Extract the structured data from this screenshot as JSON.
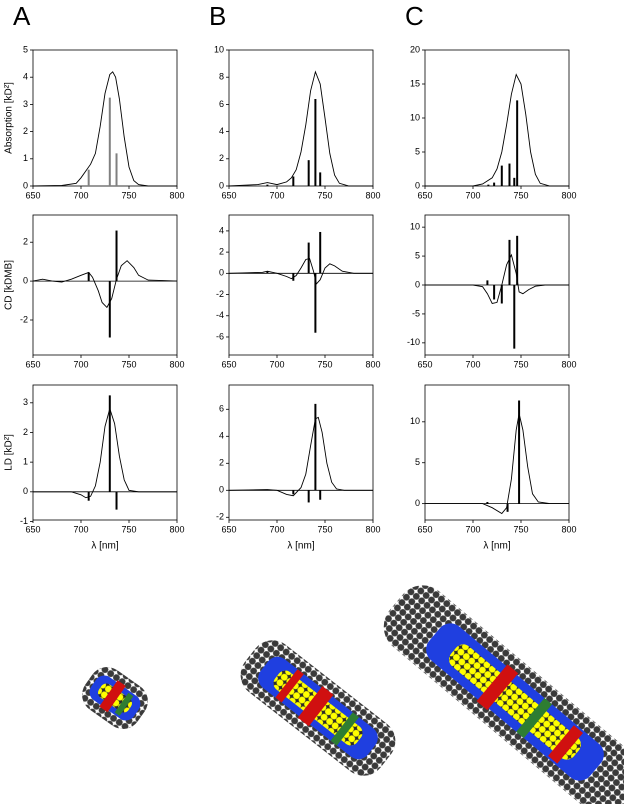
{
  "chart_data": [
    {
      "type": "line",
      "panel_label": "A",
      "ylabel": "Absorption [kD²]",
      "xlim": [
        650,
        800
      ],
      "xticks": [
        650,
        700,
        750,
        800
      ],
      "ylim": [
        0,
        5
      ],
      "yticks": [
        0,
        1,
        2,
        3,
        4,
        5
      ],
      "color": "#000000",
      "stick_color": "#808080",
      "x": [
        650,
        680,
        695,
        700,
        705,
        710,
        715,
        720,
        725,
        730,
        733,
        736,
        740,
        745,
        750,
        755,
        760,
        770,
        800
      ],
      "values": [
        0,
        0.02,
        0.1,
        0.3,
        0.55,
        0.8,
        1.2,
        2.2,
        3.4,
        4.1,
        4.2,
        4.0,
        3.2,
        1.8,
        0.7,
        0.2,
        0.05,
        0,
        0
      ],
      "sticks_x": [
        708,
        730,
        737
      ],
      "sticks": [
        0.6,
        3.25,
        1.2
      ]
    },
    {
      "type": "line",
      "panel_label": "B",
      "xlim": [
        650,
        800
      ],
      "xticks": [
        650,
        700,
        750,
        800
      ],
      "ylim": [
        0,
        10
      ],
      "yticks": [
        0,
        2,
        4,
        6,
        8,
        10
      ],
      "color": "#000000",
      "stick_color": "#000000",
      "x": [
        650,
        680,
        690,
        700,
        710,
        715,
        720,
        725,
        730,
        735,
        740,
        745,
        750,
        755,
        760,
        765,
        775,
        800
      ],
      "values": [
        0,
        0.1,
        0.25,
        0.1,
        0.3,
        0.6,
        1.2,
        2.5,
        4.5,
        7.0,
        8.4,
        7.5,
        5.0,
        2.4,
        0.8,
        0.2,
        0,
        0
      ],
      "sticks_x": [
        690,
        717,
        733,
        740,
        745
      ],
      "sticks": [
        0.1,
        0.7,
        1.9,
        6.4,
        1.0
      ]
    },
    {
      "type": "line",
      "panel_label": "C",
      "xlim": [
        650,
        800
      ],
      "xticks": [
        650,
        700,
        750,
        800
      ],
      "ylim": [
        0,
        20
      ],
      "yticks": [
        0,
        5,
        10,
        15,
        20
      ],
      "color": "#000000",
      "stick_color": "#000000",
      "x": [
        650,
        700,
        710,
        720,
        725,
        730,
        735,
        740,
        745,
        750,
        755,
        760,
        765,
        770,
        780,
        800
      ],
      "values": [
        0,
        0,
        0.3,
        1.2,
        2.5,
        5,
        9,
        13.5,
        16.4,
        15,
        10.5,
        5,
        1.7,
        0.4,
        0,
        0
      ],
      "sticks_x": [
        716,
        722,
        730,
        738,
        743,
        746
      ],
      "sticks": [
        0.2,
        0.5,
        3.0,
        3.3,
        1.2,
        12.6
      ]
    },
    {
      "type": "line",
      "ylabel": "CD [kDMB]",
      "xlim": [
        650,
        800
      ],
      "xticks": [
        650,
        700,
        750,
        800
      ],
      "ylim": [
        -3.8,
        3.4
      ],
      "yticks": [
        -2,
        0,
        2
      ],
      "color": "#000000",
      "stick_color": "#000000",
      "x": [
        650,
        660,
        670,
        680,
        690,
        700,
        708,
        712,
        718,
        722,
        727,
        732,
        737,
        742,
        748,
        755,
        760,
        770,
        800
      ],
      "values": [
        0,
        0.1,
        0,
        -0.05,
        0.1,
        0.3,
        0.45,
        0.2,
        -0.5,
        -1.1,
        -1.35,
        -0.9,
        0.1,
        0.8,
        1.05,
        0.7,
        0.3,
        0.05,
        0
      ],
      "sticks_x": [
        708,
        730,
        737
      ],
      "sticks": [
        0.45,
        -2.9,
        2.6
      ]
    },
    {
      "type": "line",
      "xlim": [
        650,
        800
      ],
      "xticks": [
        650,
        700,
        750,
        800
      ],
      "ylim": [
        -7.7,
        5.5
      ],
      "yticks": [
        -6,
        -4,
        -2,
        0,
        2,
        4
      ],
      "color": "#000000",
      "stick_color": "#000000",
      "x": [
        650,
        685,
        690,
        700,
        710,
        715,
        720,
        725,
        730,
        734,
        738,
        741,
        745,
        750,
        755,
        760,
        768,
        780,
        800
      ],
      "values": [
        0,
        0.1,
        0.2,
        0,
        -0.3,
        -0.5,
        -0.2,
        0.5,
        1.3,
        1.4,
        0.2,
        -1.0,
        -0.6,
        0.5,
        0.9,
        0.7,
        0.2,
        0,
        0
      ],
      "sticks_x": [
        690,
        717,
        733,
        740,
        745
      ],
      "sticks": [
        0.2,
        -0.7,
        2.9,
        -5.6,
        3.9
      ]
    },
    {
      "type": "line",
      "xlim": [
        650,
        800
      ],
      "xticks": [
        650,
        700,
        750,
        800
      ],
      "ylim": [
        -12.1,
        12.1
      ],
      "yticks": [
        -10,
        -5,
        0,
        5,
        10
      ],
      "color": "#000000",
      "stick_color": "#000000",
      "x": [
        650,
        700,
        710,
        715,
        720,
        725,
        730,
        735,
        740,
        745,
        748,
        752,
        758,
        765,
        775,
        800
      ],
      "values": [
        0,
        0,
        -0.3,
        -1.5,
        -3.2,
        -3,
        0,
        3.5,
        5.2,
        2,
        -1.2,
        -1.5,
        -0.8,
        -0.2,
        0,
        0
      ],
      "sticks_x": [
        715,
        722,
        730,
        738,
        743,
        746
      ],
      "sticks": [
        0.8,
        -2.5,
        -3.2,
        7.8,
        -11,
        8.5
      ]
    },
    {
      "type": "line",
      "ylabel": "LD [kD²]",
      "xlabel": "λ [nm]",
      "xlim": [
        650,
        800
      ],
      "xticks": [
        650,
        700,
        750,
        800
      ],
      "ylim": [
        -0.95,
        3.6
      ],
      "yticks": [
        -1,
        0,
        1,
        2,
        3
      ],
      "color": "#000000",
      "stick_color": "#000000",
      "x": [
        650,
        690,
        700,
        705,
        710,
        715,
        720,
        725,
        730,
        735,
        740,
        745,
        750,
        760,
        800
      ],
      "values": [
        0,
        0,
        -0.1,
        -0.2,
        -0.15,
        0.2,
        1.0,
        2.2,
        2.8,
        2.3,
        1.2,
        0.4,
        0.05,
        0,
        0
      ],
      "sticks_x": [
        708,
        730,
        737
      ],
      "sticks": [
        -0.3,
        3.25,
        -0.6
      ]
    },
    {
      "type": "line",
      "xlabel": "λ [nm]",
      "xlim": [
        650,
        800
      ],
      "xticks": [
        650,
        700,
        750,
        800
      ],
      "ylim": [
        -2.2,
        7.8
      ],
      "yticks": [
        -2,
        0,
        2,
        4,
        6
      ],
      "color": "#000000",
      "stick_color": "#000000",
      "x": [
        650,
        690,
        700,
        710,
        717,
        725,
        730,
        735,
        740,
        743,
        747,
        752,
        757,
        762,
        770,
        800
      ],
      "values": [
        0,
        0.05,
        0,
        -0.3,
        -0.4,
        0.2,
        1.2,
        3.3,
        5.3,
        5.4,
        4.3,
        2.0,
        0.6,
        0.1,
        0,
        0
      ],
      "sticks_x": [
        717,
        733,
        740,
        745
      ],
      "sticks": [
        -0.3,
        -0.9,
        6.4,
        -0.7
      ]
    },
    {
      "type": "line",
      "xlabel": "λ [nm]",
      "xlim": [
        650,
        800
      ],
      "xticks": [
        650,
        700,
        750,
        800
      ],
      "ylim": [
        -2,
        14.5
      ],
      "yticks": [
        0,
        5,
        10
      ],
      "color": "#000000",
      "stick_color": "#000000",
      "x": [
        650,
        710,
        720,
        730,
        735,
        740,
        745,
        748,
        752,
        757,
        762,
        768,
        780,
        800
      ],
      "values": [
        0,
        0,
        -0.5,
        -1.2,
        -0.5,
        3,
        9,
        11,
        9,
        4.5,
        1.2,
        0.2,
        0,
        0
      ],
      "sticks_x": [
        715,
        736,
        748
      ],
      "sticks": [
        0.2,
        -1,
        12.6
      ]
    }
  ]
}
